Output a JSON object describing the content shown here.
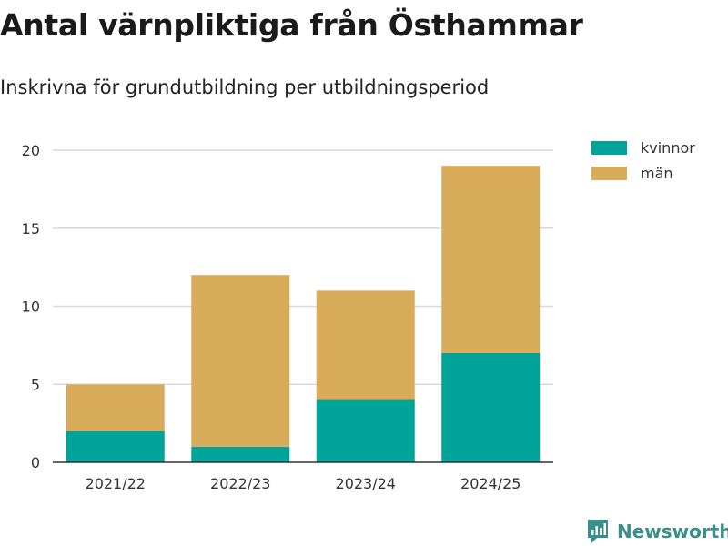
{
  "title": "Antal värnpliktiga från Östhammar",
  "subtitle": "Inskrivna för grundutbildning per utbildningsperiod",
  "brand": {
    "name": "Newsworthy",
    "icon": "newsworthy-logo-icon"
  },
  "colors": {
    "kvinnor": "#00a398",
    "man": "#d9ac5b",
    "grid": "#d8d8d8",
    "axis": "#333333",
    "brand": "#3a8f8a"
  },
  "chart_data": {
    "type": "bar",
    "stacked": true,
    "categories": [
      "2021/22",
      "2022/23",
      "2023/24",
      "2024/25"
    ],
    "series": [
      {
        "name": "kvinnor",
        "values": [
          2,
          1,
          4,
          7
        ]
      },
      {
        "name": "män",
        "values": [
          3,
          11,
          7,
          12
        ]
      }
    ],
    "yticks": [
      "0",
      "5",
      "10",
      "15",
      "20"
    ],
    "ylim": [
      0,
      20
    ],
    "grid": true,
    "legend_position": "top-right"
  }
}
